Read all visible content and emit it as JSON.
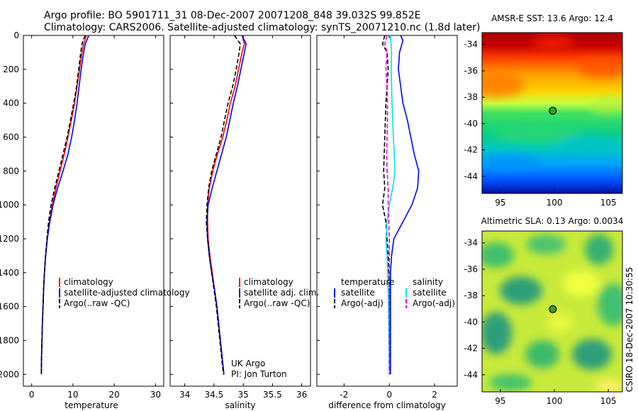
{
  "header": {
    "line1": "Argo profile: BO 5901711_31 08-Dec-2007 20071208_848 39.032S 99.852E",
    "line2": "Climatology: CARS2006. Satellite-adjusted climatology: synTS_20071210.nc (1.8d later)"
  },
  "credit": "CSIRO 18-Dec-2007 10:30:55",
  "colors": {
    "climatology": "#ff0000",
    "satellite": "#0000ff",
    "argo": "#000000",
    "satellite_salinity": "#00e5e5",
    "argo_salinity_adj": "#e000e0"
  },
  "chart_data": [
    {
      "type": "line",
      "xlabel": "temperature",
      "xticks": [
        "0",
        "10",
        "20",
        "30"
      ],
      "yticks": [
        "0",
        "200",
        "400",
        "600",
        "800",
        "1000",
        "1200",
        "1400",
        "1600",
        "1800",
        "2000"
      ],
      "xlim": [
        -2,
        32
      ],
      "ylim": [
        2070,
        0
      ],
      "y_reversed": true,
      "series": [
        {
          "name": "climatology",
          "color": "#ff0000",
          "dash": "none",
          "points": [
            [
              13.2,
              0
            ],
            [
              13.0,
              20
            ],
            [
              12.6,
              50
            ],
            [
              12.2,
              100
            ],
            [
              11.6,
              200
            ],
            [
              11.0,
              300
            ],
            [
              10.4,
              400
            ],
            [
              9.6,
              500
            ],
            [
              8.8,
              600
            ],
            [
              7.9,
              700
            ],
            [
              6.9,
              800
            ],
            [
              5.9,
              900
            ],
            [
              5.0,
              1000
            ],
            [
              4.3,
              1100
            ],
            [
              3.8,
              1200
            ],
            [
              3.4,
              1300
            ],
            [
              3.1,
              1400
            ],
            [
              2.9,
              1500
            ],
            [
              2.75,
              1600
            ],
            [
              2.6,
              1700
            ],
            [
              2.5,
              1800
            ],
            [
              2.4,
              1900
            ],
            [
              2.35,
              2000
            ]
          ]
        },
        {
          "name": "satellite-adjusted climatology",
          "color": "#0000ff",
          "dash": "none",
          "points": [
            [
              13.8,
              0
            ],
            [
              13.5,
              20
            ],
            [
              13.0,
              50
            ],
            [
              12.6,
              100
            ],
            [
              12.0,
              200
            ],
            [
              11.5,
              300
            ],
            [
              11.0,
              400
            ],
            [
              10.4,
              500
            ],
            [
              9.7,
              600
            ],
            [
              8.8,
              700
            ],
            [
              7.6,
              800
            ],
            [
              6.3,
              900
            ],
            [
              5.2,
              1000
            ],
            [
              4.4,
              1100
            ],
            [
              3.8,
              1200
            ],
            [
              3.4,
              1300
            ],
            [
              3.1,
              1400
            ],
            [
              2.9,
              1500
            ],
            [
              2.75,
              1600
            ],
            [
              2.6,
              1700
            ],
            [
              2.5,
              1800
            ],
            [
              2.4,
              1900
            ],
            [
              2.35,
              2000
            ]
          ]
        },
        {
          "name": "Argo(..raw -QC)",
          "color": "#000000",
          "dash": "6,3",
          "points": [
            [
              13.0,
              0
            ],
            [
              12.6,
              20
            ],
            [
              12.2,
              50
            ],
            [
              11.9,
              100
            ],
            [
              11.4,
              200
            ],
            [
              10.9,
              300
            ],
            [
              10.2,
              400
            ],
            [
              9.4,
              500
            ],
            [
              8.6,
              600
            ],
            [
              7.6,
              700
            ],
            [
              6.6,
              800
            ],
            [
              5.6,
              900
            ],
            [
              4.7,
              1000
            ],
            [
              4.1,
              1100
            ],
            [
              3.7,
              1200
            ],
            [
              3.35,
              1300
            ],
            [
              3.1,
              1400
            ],
            [
              2.9,
              1500
            ],
            [
              2.75,
              1600
            ],
            [
              2.6,
              1700
            ],
            [
              2.5,
              1800
            ],
            [
              2.4,
              1900
            ],
            [
              2.35,
              2000
            ]
          ]
        }
      ],
      "legend": {
        "placement": "lower-right",
        "entries": [
          "climatology",
          "satellite-adjusted climatology",
          "Argo(..raw -QC)"
        ]
      }
    },
    {
      "type": "line",
      "xlabel": "salinity",
      "xticks": [
        "34",
        "34.5",
        "35",
        "35.5",
        "36"
      ],
      "yticks": [],
      "xlim": [
        33.75,
        36.15
      ],
      "ylim": [
        2070,
        0
      ],
      "y_reversed": true,
      "series": [
        {
          "name": "climatology",
          "color": "#ff0000",
          "dash": "none",
          "points": [
            [
              34.98,
              0
            ],
            [
              35.02,
              50
            ],
            [
              34.98,
              100
            ],
            [
              34.92,
              200
            ],
            [
              34.86,
              300
            ],
            [
              34.78,
              400
            ],
            [
              34.72,
              500
            ],
            [
              34.65,
              600
            ],
            [
              34.56,
              700
            ],
            [
              34.48,
              800
            ],
            [
              34.42,
              900
            ],
            [
              34.39,
              1000
            ],
            [
              34.39,
              1100
            ],
            [
              34.4,
              1200
            ],
            [
              34.43,
              1300
            ],
            [
              34.47,
              1400
            ],
            [
              34.51,
              1500
            ],
            [
              34.55,
              1600
            ],
            [
              34.58,
              1700
            ],
            [
              34.61,
              1800
            ],
            [
              34.64,
              1900
            ],
            [
              34.67,
              2000
            ]
          ]
        },
        {
          "name": "satellite adj. clim.",
          "color": "#0000ff",
          "dash": "none",
          "points": [
            [
              34.98,
              0
            ],
            [
              35.05,
              50
            ],
            [
              35.02,
              100
            ],
            [
              34.96,
              200
            ],
            [
              34.9,
              300
            ],
            [
              34.83,
              400
            ],
            [
              34.77,
              500
            ],
            [
              34.71,
              600
            ],
            [
              34.63,
              700
            ],
            [
              34.55,
              800
            ],
            [
              34.47,
              900
            ],
            [
              34.4,
              1000
            ],
            [
              34.38,
              1100
            ],
            [
              34.39,
              1200
            ],
            [
              34.42,
              1300
            ],
            [
              34.46,
              1400
            ],
            [
              34.51,
              1500
            ],
            [
              34.55,
              1600
            ],
            [
              34.58,
              1700
            ],
            [
              34.61,
              1800
            ],
            [
              34.64,
              1900
            ],
            [
              34.67,
              2000
            ]
          ]
        },
        {
          "name": "Argo(..raw -QC)",
          "color": "#000000",
          "dash": "6,3",
          "points": [
            [
              34.85,
              0
            ],
            [
              34.95,
              50
            ],
            [
              34.93,
              100
            ],
            [
              34.88,
              200
            ],
            [
              34.82,
              300
            ],
            [
              34.74,
              400
            ],
            [
              34.68,
              500
            ],
            [
              34.62,
              600
            ],
            [
              34.54,
              700
            ],
            [
              34.46,
              800
            ],
            [
              34.41,
              900
            ],
            [
              34.38,
              1000
            ],
            [
              34.37,
              1100
            ],
            [
              34.39,
              1200
            ],
            [
              34.42,
              1300
            ],
            [
              34.46,
              1400
            ],
            [
              34.5,
              1500
            ],
            [
              34.54,
              1600
            ],
            [
              34.57,
              1700
            ],
            [
              34.6,
              1800
            ],
            [
              34.63,
              1900
            ],
            [
              34.66,
              2000
            ]
          ]
        }
      ],
      "legend": {
        "placement": "lower-right",
        "entries": [
          "climatology",
          "satellite adj. clim.",
          "Argo(..raw -QC)"
        ]
      },
      "annotations": [
        "UK Argo",
        "PI: Jon Turton"
      ]
    },
    {
      "type": "line",
      "xlabel": "difference from climatology",
      "xticks": [
        "-2",
        "0",
        "2"
      ],
      "yticks": [],
      "xlim": [
        -3.2,
        3.0
      ],
      "ylim": [
        2070,
        0
      ],
      "y_reversed": true,
      "series": [
        {
          "name": "temperature satellite",
          "color": "#0000ff",
          "dash": "none",
          "points": [
            [
              0.5,
              0
            ],
            [
              0.6,
              30
            ],
            [
              0.45,
              100
            ],
            [
              0.4,
              200
            ],
            [
              0.5,
              300
            ],
            [
              0.6,
              400
            ],
            [
              0.8,
              500
            ],
            [
              0.95,
              600
            ],
            [
              1.1,
              700
            ],
            [
              1.3,
              800
            ],
            [
              1.25,
              900
            ],
            [
              1.0,
              1000
            ],
            [
              0.6,
              1100
            ],
            [
              0.2,
              1200
            ],
            [
              0.1,
              1300
            ],
            [
              0.05,
              1400
            ],
            [
              0.05,
              1600
            ],
            [
              0.05,
              2000
            ]
          ]
        },
        {
          "name": "temperature Argo(-adj)",
          "color": "#000000",
          "dash": "6,3",
          "points": [
            [
              -0.2,
              0
            ],
            [
              -0.3,
              50
            ],
            [
              -0.1,
              100
            ],
            [
              -0.05,
              200
            ],
            [
              -0.1,
              300
            ],
            [
              -0.15,
              400
            ],
            [
              -0.2,
              600
            ],
            [
              -0.25,
              800
            ],
            [
              -0.2,
              900
            ],
            [
              -0.3,
              1000
            ],
            [
              -0.15,
              1100
            ],
            [
              -0.1,
              1200
            ],
            [
              -0.05,
              1300
            ],
            [
              0,
              1500
            ],
            [
              0,
              2000
            ]
          ]
        },
        {
          "name": "salinity satellite",
          "color": "#00e5e5",
          "dash": "none",
          "points": [
            [
              0.05,
              0
            ],
            [
              0.1,
              100
            ],
            [
              0.08,
              200
            ],
            [
              0.1,
              300
            ],
            [
              0.12,
              400
            ],
            [
              0.15,
              500
            ],
            [
              0.18,
              600
            ],
            [
              0.22,
              700
            ],
            [
              0.25,
              800
            ],
            [
              0.15,
              900
            ],
            [
              0.0,
              1000
            ],
            [
              -0.1,
              1100
            ],
            [
              -0.15,
              1200
            ],
            [
              -0.1,
              1300
            ],
            [
              -0.05,
              1500
            ],
            [
              0,
              2000
            ]
          ]
        },
        {
          "name": "salinity Argo(-adj)",
          "color": "#e000e0",
          "dash": "6,3",
          "points": [
            [
              -0.1,
              0
            ],
            [
              -0.2,
              50
            ],
            [
              -0.1,
              100
            ],
            [
              -0.15,
              200
            ],
            [
              -0.1,
              300
            ],
            [
              -0.08,
              400
            ],
            [
              -0.08,
              500
            ],
            [
              -0.1,
              600
            ],
            [
              -0.12,
              700
            ],
            [
              -0.1,
              800
            ],
            [
              -0.05,
              900
            ],
            [
              -0.05,
              1000
            ],
            [
              0,
              1200
            ],
            [
              0,
              2000
            ]
          ]
        }
      ],
      "legend": {
        "placement": "lower-center",
        "groups": [
          {
            "title": "temperature",
            "entries": [
              "satellite",
              "Argo(-adj)"
            ]
          },
          {
            "title": "salinity",
            "entries": [
              "satellite",
              "Argo(-adj)"
            ]
          }
        ]
      }
    },
    {
      "type": "heatmap",
      "title": "AMSR-E SST: 13.6 Argo: 12.4",
      "xticks": [
        "95",
        "100",
        "105"
      ],
      "yticks": [
        "-34",
        "-36",
        "-38",
        "-40",
        "-42",
        "-44"
      ],
      "xlim": [
        93.3,
        106.3
      ],
      "ylim": [
        -45.3,
        -33.1
      ],
      "marker": {
        "lon": 99.85,
        "lat": -39.03
      }
    },
    {
      "type": "heatmap",
      "title": "Altimetric SLA: 0.13 Argo: 0.0034",
      "xticks": [
        "95",
        "100",
        "105"
      ],
      "yticks": [
        "-34",
        "-36",
        "-38",
        "-40",
        "-42",
        "-44"
      ],
      "xlim": [
        93.3,
        106.3
      ],
      "ylim": [
        -45.3,
        -33.1
      ],
      "marker": {
        "lon": 99.85,
        "lat": -39.03
      }
    }
  ]
}
